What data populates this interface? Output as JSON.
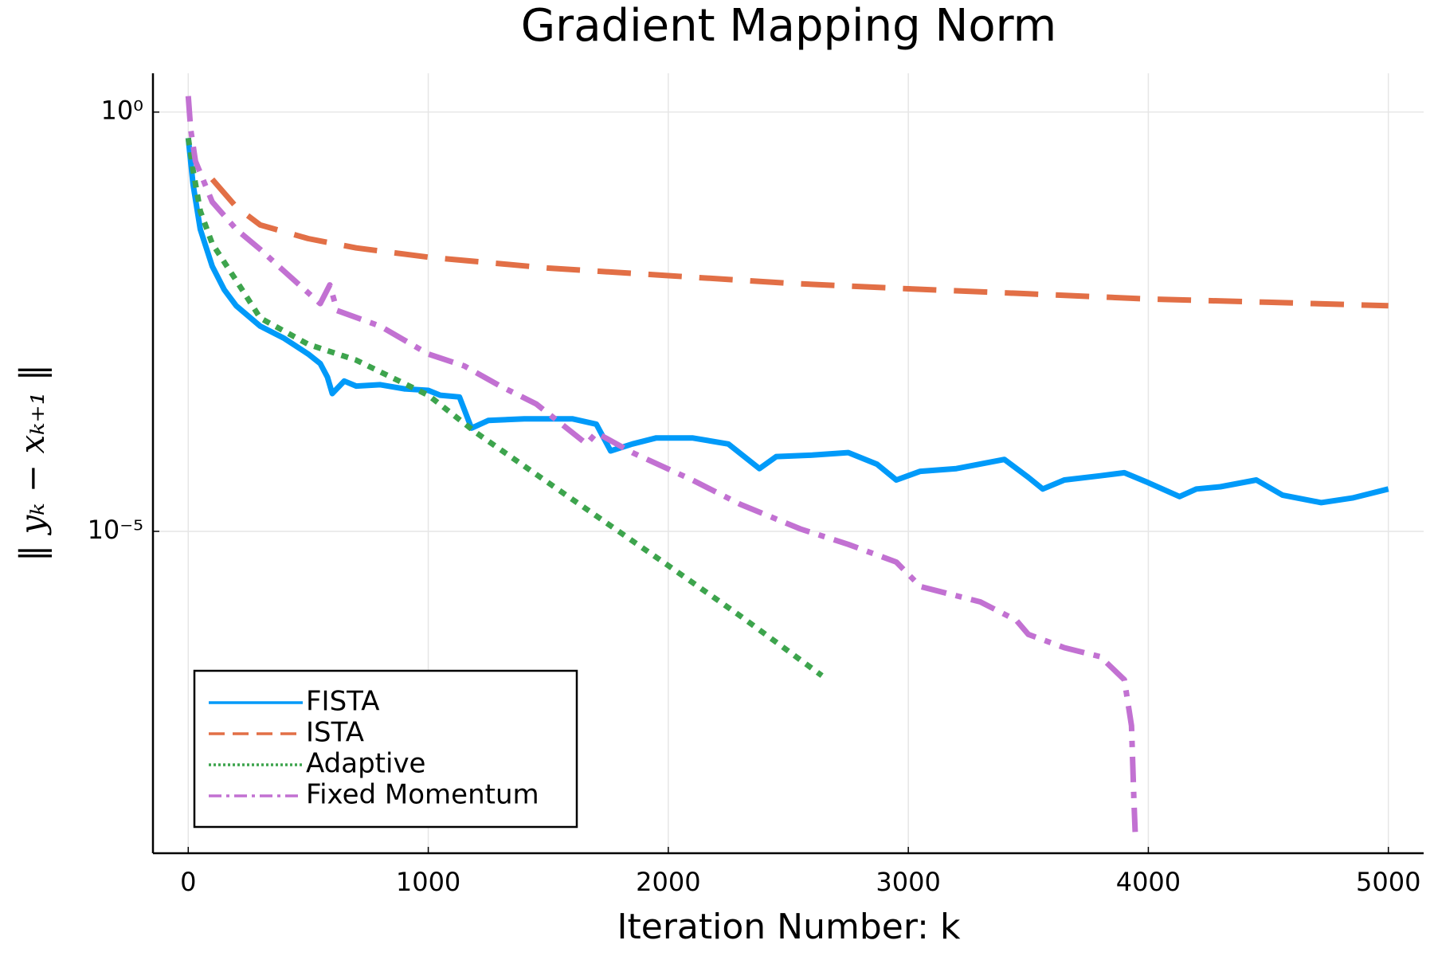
{
  "chart_data": {
    "type": "line",
    "title": "Gradient Mapping Norm",
    "x_label": "Iteration Number: k",
    "y_label": "‖ yₖ − xₖ₊₁ ‖",
    "log_y": true,
    "grid": true,
    "legend_position": "bottom-left",
    "xlim": [
      -147,
      5147
    ],
    "ylim": [
      1.45e-09,
      2.9
    ],
    "xticks": [
      0,
      1000,
      2000,
      3000,
      4000,
      5000
    ],
    "yticks": [
      {
        "value": 1,
        "label": "10⁰"
      },
      {
        "value": 1e-05,
        "label": "10⁻⁵"
      }
    ],
    "series": [
      {
        "name": "FISTA",
        "color": "#009af9",
        "line_style": "solid",
        "x": [
          0,
          20,
          50,
          100,
          150,
          200,
          300,
          400,
          500,
          550,
          580,
          600,
          650,
          700,
          800,
          900,
          1000,
          1050,
          1130,
          1180,
          1250,
          1400,
          1600,
          1700,
          1760,
          1850,
          1950,
          2100,
          2250,
          2380,
          2450,
          2600,
          2750,
          2870,
          2950,
          3050,
          3200,
          3400,
          3500,
          3560,
          3650,
          3800,
          3900,
          4000,
          4130,
          4200,
          4300,
          4450,
          4560,
          4720,
          4850,
          5000
        ],
        "values": [
          0.49,
          0.138,
          0.04,
          0.0145,
          0.0076,
          0.0049,
          0.0028,
          0.002,
          0.0013,
          0.001,
          0.00069,
          0.00044,
          0.00062,
          0.00054,
          0.00056,
          0.0005,
          0.00048,
          0.00042,
          0.0004,
          0.00017,
          0.00021,
          0.00022,
          0.00022,
          0.00019,
          9.1e-05,
          0.00011,
          0.00013,
          0.00013,
          0.00011,
          5.6e-05,
          7.8e-05,
          8.1e-05,
          8.7e-05,
          6.3e-05,
          4.1e-05,
          5.2e-05,
          5.6e-05,
          7.2e-05,
          4.4e-05,
          3.2e-05,
          4.1e-05,
          4.6e-05,
          5e-05,
          3.8e-05,
          2.6e-05,
          3.2e-05,
          3.4e-05,
          4.1e-05,
          2.7e-05,
          2.2e-05,
          2.5e-05,
          3.2e-05
        ]
      },
      {
        "name": "ISTA",
        "color": "#e26f46",
        "line_style": "dash",
        "x": [
          100,
          200,
          300,
          500,
          700,
          1000,
          1500,
          2000,
          2500,
          3000,
          3500,
          4000,
          4500,
          5000
        ],
        "values": [
          0.158,
          0.074,
          0.045,
          0.031,
          0.024,
          0.0186,
          0.0138,
          0.0112,
          0.0091,
          0.0078,
          0.0068,
          0.0059,
          0.0054,
          0.0049
        ]
      },
      {
        "name": "Adaptive",
        "color": "#3da44d",
        "line_style": "dot",
        "x": [
          0,
          20,
          50,
          100,
          200,
          300,
          500,
          700,
          1000,
          1200,
          1500,
          2000,
          2300,
          2640
        ],
        "values": [
          0.49,
          0.204,
          0.066,
          0.027,
          0.0098,
          0.0035,
          0.0017,
          0.0011,
          0.00042,
          0.00015,
          3.8e-05,
          3.9e-06,
          9.8e-07,
          1.9e-07
        ]
      },
      {
        "name": "Fixed Momentum",
        "color": "#c271d2",
        "line_style": "dashdot",
        "x": [
          0,
          10,
          30,
          100,
          200,
          300,
          400,
          550,
          590,
          620,
          800,
          1000,
          1150,
          1300,
          1450,
          1660,
          1700,
          1850,
          2100,
          2300,
          2550,
          2750,
          2950,
          3050,
          3300,
          3450,
          3500,
          3650,
          3800,
          3900,
          3930,
          3940,
          3945
        ],
        "values": [
          1.55,
          0.63,
          0.26,
          0.085,
          0.04,
          0.023,
          0.0126,
          0.0052,
          0.0087,
          0.0043,
          0.0028,
          0.0013,
          0.00094,
          0.00054,
          0.00033,
          0.00011,
          0.00015,
          8.7e-05,
          4.1e-05,
          2.1e-05,
          1.07e-05,
          7e-06,
          4.3e-06,
          2.2e-06,
          1.44e-06,
          8.7e-07,
          5.9e-07,
          4.1e-07,
          3.2e-07,
          1.7e-07,
          4.8e-08,
          6.3e-09,
          2.6e-09
        ]
      }
    ]
  }
}
